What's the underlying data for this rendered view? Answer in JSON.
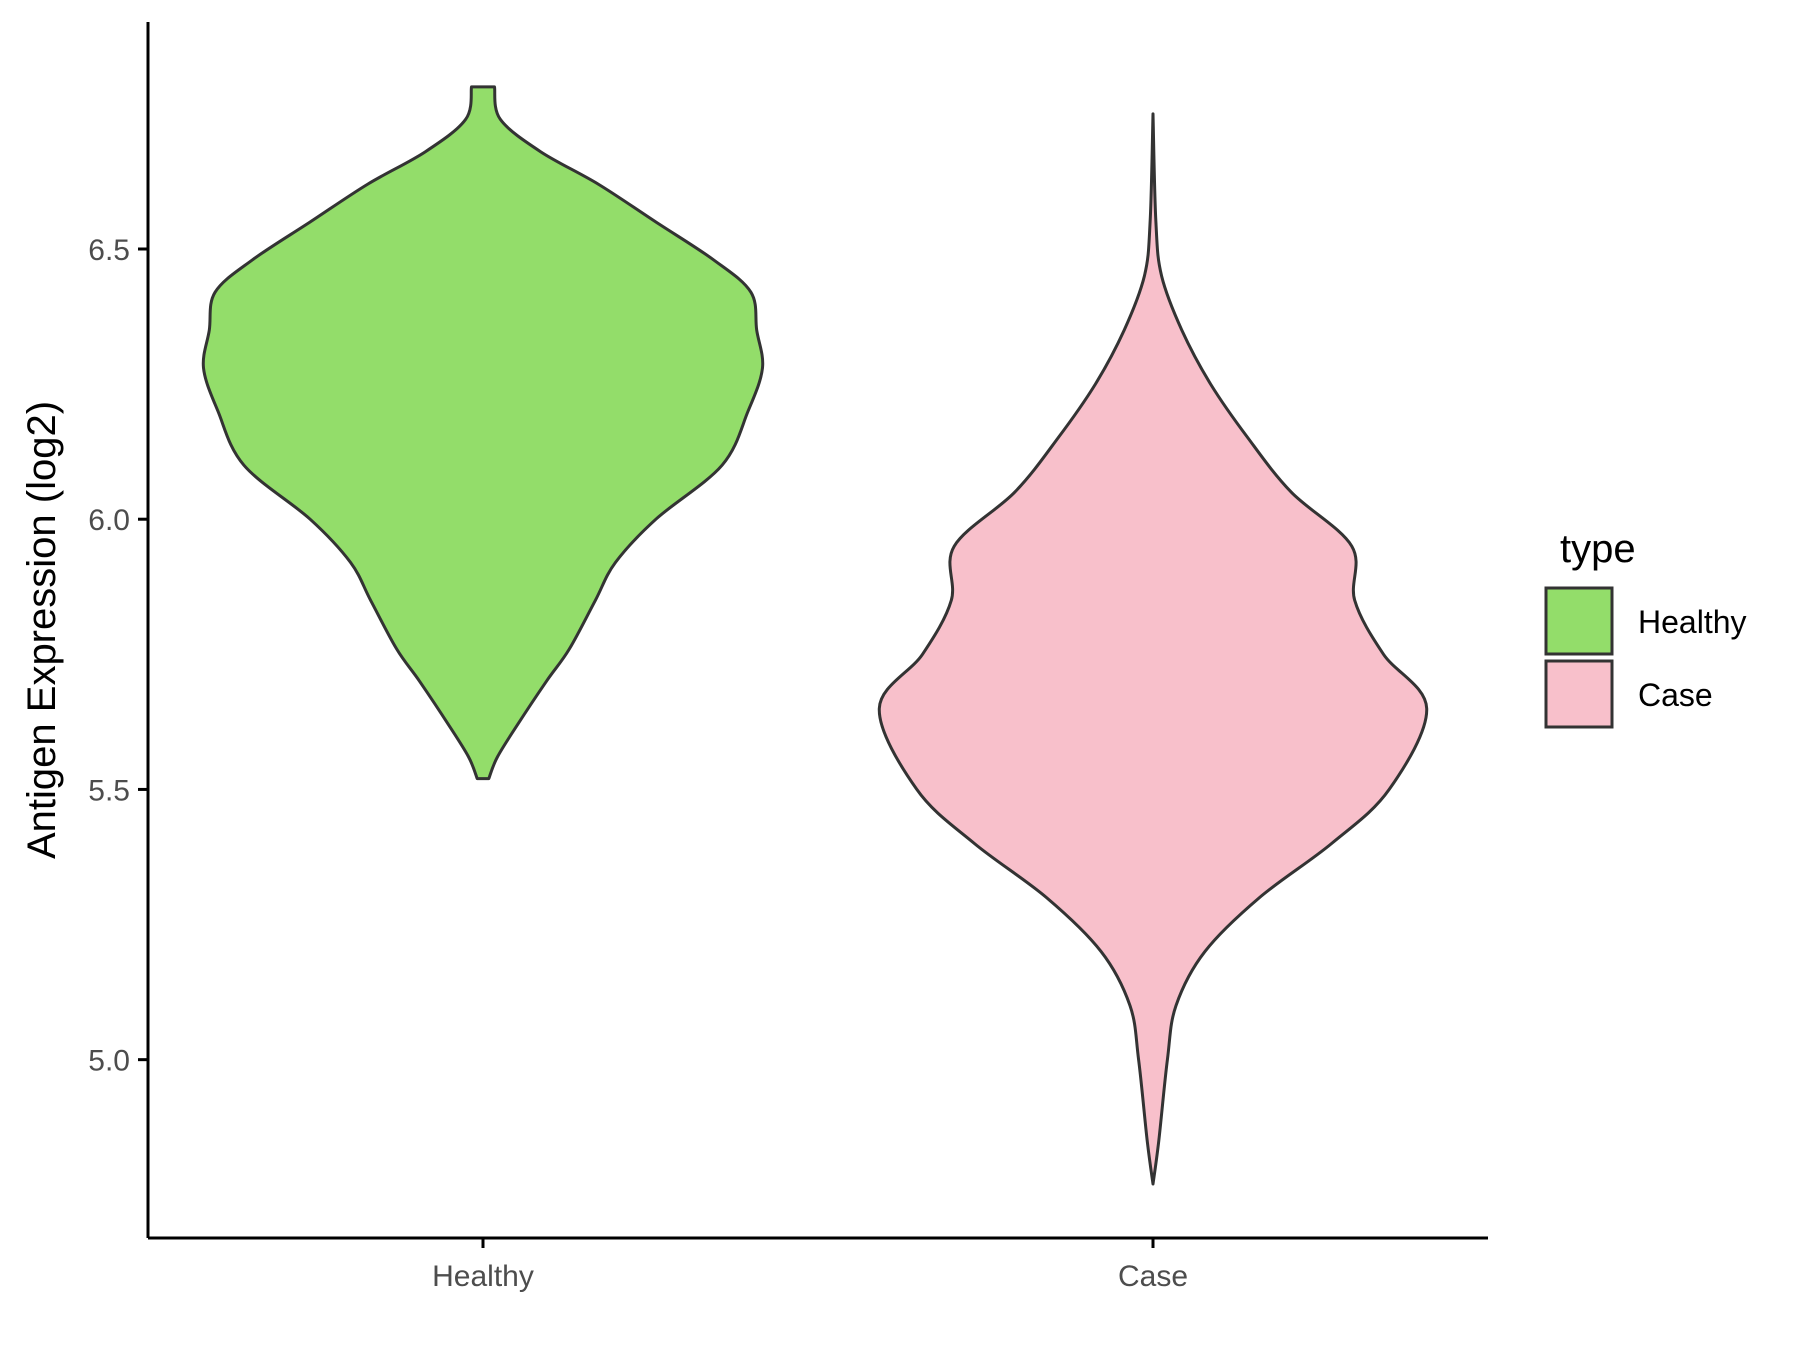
{
  "chart_data": {
    "type": "violin",
    "title": "",
    "xlabel": "",
    "ylabel": "Antigen Expression (log2)",
    "ylim": [
      4.67,
      6.92
    ],
    "yticks": [
      5.0,
      5.5,
      6.0,
      6.5
    ],
    "ytick_labels": [
      "5.0",
      "5.5",
      "6.0",
      "6.5"
    ],
    "categories": [
      "Healthy",
      "Case"
    ],
    "grid": false,
    "legend": {
      "title": "type",
      "position": "right",
      "entries": [
        {
          "label": "Healthy",
          "color": "#93dd6a"
        },
        {
          "label": "Case",
          "color": "#f8c0cb"
        }
      ]
    },
    "series": [
      {
        "name": "Healthy",
        "color": "#93dd6a",
        "min": 5.52,
        "max": 6.8,
        "density": [
          [
            5.52,
            0.02
          ],
          [
            5.56,
            0.05
          ],
          [
            5.62,
            0.12
          ],
          [
            5.7,
            0.22
          ],
          [
            5.76,
            0.3
          ],
          [
            5.85,
            0.39
          ],
          [
            5.92,
            0.46
          ],
          [
            6.0,
            0.6
          ],
          [
            6.1,
            0.83
          ],
          [
            6.2,
            0.92
          ],
          [
            6.28,
            0.97
          ],
          [
            6.35,
            0.95
          ],
          [
            6.42,
            0.93
          ],
          [
            6.48,
            0.8
          ],
          [
            6.55,
            0.6
          ],
          [
            6.62,
            0.4
          ],
          [
            6.68,
            0.2
          ],
          [
            6.74,
            0.06
          ],
          [
            6.8,
            0.04
          ]
        ]
      },
      {
        "name": "Case",
        "color": "#f8c0cb",
        "min": 4.77,
        "max": 6.75,
        "density": [
          [
            4.77,
            0.0
          ],
          [
            4.85,
            0.02
          ],
          [
            5.0,
            0.05
          ],
          [
            5.1,
            0.08
          ],
          [
            5.2,
            0.18
          ],
          [
            5.3,
            0.37
          ],
          [
            5.4,
            0.62
          ],
          [
            5.5,
            0.82
          ],
          [
            5.65,
            0.95
          ],
          [
            5.75,
            0.8
          ],
          [
            5.85,
            0.7
          ],
          [
            5.95,
            0.69
          ],
          [
            6.05,
            0.48
          ],
          [
            6.15,
            0.33
          ],
          [
            6.25,
            0.2
          ],
          [
            6.35,
            0.1
          ],
          [
            6.45,
            0.03
          ],
          [
            6.55,
            0.01
          ],
          [
            6.75,
            0.0
          ]
        ]
      }
    ]
  }
}
